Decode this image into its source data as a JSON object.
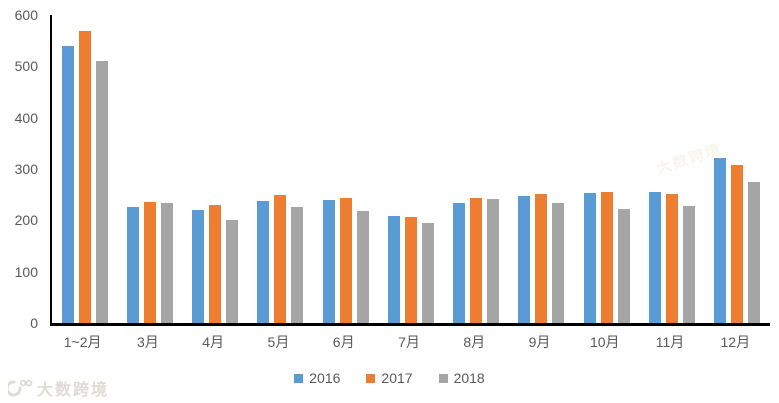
{
  "chart_data": {
    "type": "bar",
    "title": "",
    "xlabel": "",
    "ylabel": "",
    "categories": [
      "1~2月",
      "3月",
      "4月",
      "5月",
      "6月",
      "7月",
      "8月",
      "9月",
      "10月",
      "11月",
      "12月"
    ],
    "series": [
      {
        "name": "2016",
        "color": "#5B9BD5",
        "values": [
          540,
          226,
          220,
          238,
          240,
          208,
          233,
          247,
          254,
          255,
          322
        ]
      },
      {
        "name": "2017",
        "color": "#ED7D31",
        "values": [
          568,
          235,
          229,
          250,
          243,
          207,
          244,
          252,
          255,
          251,
          308
        ]
      },
      {
        "name": "2018",
        "color": "#A5A5A5",
        "values": [
          510,
          234,
          201,
          226,
          219,
          194,
          242,
          233,
          223,
          227,
          275
        ]
      }
    ],
    "ylim": [
      0,
      600
    ],
    "yticks": [
      600,
      500,
      400,
      300,
      200,
      100,
      0
    ],
    "grid": false,
    "legend_position": "bottom",
    "axis_color": "#000000",
    "tick_label_color": "#595959"
  },
  "watermark": {
    "text": "大数跨境"
  }
}
